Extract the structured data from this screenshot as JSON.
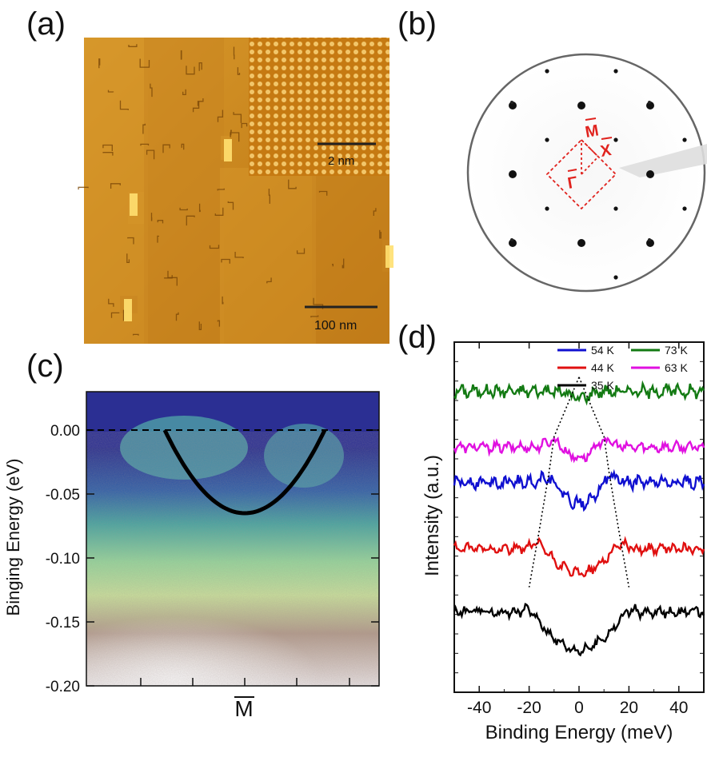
{
  "panels": {
    "a": {
      "label": "(a)",
      "inset_scale": "2 nm",
      "main_scale": "100 nm"
    },
    "b": {
      "label": "(b)",
      "points": [
        "M",
        "X",
        "Γ"
      ],
      "accent": "#e0231e"
    },
    "c": {
      "label": "(c)",
      "ylabel": "Binging Energy (eV)",
      "xtick": "M",
      "yticks": [
        "0.00",
        "-0.05",
        "-0.10",
        "-0.15",
        "-0.20"
      ]
    },
    "d": {
      "label": "(d)",
      "xlabel": "Binding Energy (meV)",
      "ylabel": "Intensity (a.u.)",
      "xticks": [
        "-40",
        "-20",
        "0",
        "20",
        "40"
      ],
      "legend": [
        {
          "name": "54 K",
          "color": "#1010d0"
        },
        {
          "name": "73 K",
          "color": "#137a13"
        },
        {
          "name": "44 K",
          "color": "#e01010"
        },
        {
          "name": "63 K",
          "color": "#e010e0"
        },
        {
          "name": "35 K",
          "color": "#000000"
        }
      ]
    }
  },
  "chart_data": [
    {
      "panel": "c",
      "type": "heatmap",
      "ylabel": "Binging Energy (eV)",
      "ylim": [
        -0.2,
        0.03
      ],
      "yticks": [
        0.0,
        -0.05,
        -0.1,
        -0.15,
        -0.2
      ],
      "fermi_level": 0.0,
      "x_marker": "M",
      "band_fit": {
        "x_min": -0.5,
        "x_max": 0.5,
        "bottom": -0.065,
        "top": 0.0
      }
    },
    {
      "panel": "d",
      "type": "line",
      "xlabel": "Binding Energy (meV)",
      "ylabel": "Intensity (a.u.)",
      "xlim": [
        -50,
        50
      ],
      "xticks": [
        -40,
        -20,
        0,
        20,
        40
      ],
      "series": [
        {
          "name": "73 K",
          "color": "#137a13",
          "offset": 0.86,
          "gap_depth": 0.02,
          "peak": 0,
          "noise": 0.025
        },
        {
          "name": "63 K",
          "color": "#e010e0",
          "offset": 0.7,
          "gap_depth": 0.03,
          "peak": 10,
          "noise": 0.02
        },
        {
          "name": "54 K",
          "color": "#1010d0",
          "offset": 0.6,
          "gap_depth": 0.06,
          "peak": 12,
          "noise": 0.025
        },
        {
          "name": "44 K",
          "color": "#e01010",
          "offset": 0.41,
          "gap_depth": 0.07,
          "peak": 16,
          "noise": 0.02
        },
        {
          "name": "35 K",
          "color": "#000000",
          "offset": 0.23,
          "gap_depth": 0.11,
          "peak": 20,
          "noise": 0.02
        }
      ],
      "guide_peaks": [
        [
          0,
          0.9
        ],
        [
          10,
          0.73
        ],
        [
          12,
          0.63
        ],
        [
          16,
          0.46
        ],
        [
          20,
          0.3
        ]
      ]
    }
  ]
}
